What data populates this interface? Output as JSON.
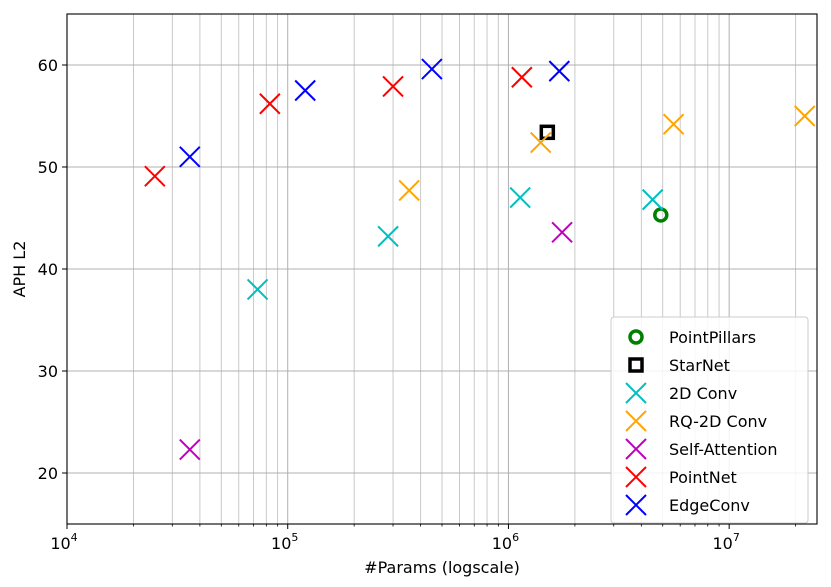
{
  "chart_data": {
    "type": "scatter",
    "xlabel": "#Params (logscale)",
    "ylabel": "APH L2",
    "xscale": "log",
    "xlim": [
      10000,
      25000000
    ],
    "ylim": [
      15,
      65
    ],
    "grid": true,
    "legend_position": "bottom-right",
    "x_ticks": [
      {
        "value": 10000,
        "base": "10",
        "exp": "4"
      },
      {
        "value": 100000,
        "base": "10",
        "exp": "5"
      },
      {
        "value": 1000000,
        "base": "10",
        "exp": "6"
      },
      {
        "value": 10000000,
        "base": "10",
        "exp": "7"
      }
    ],
    "y_ticks": [
      20,
      30,
      40,
      50,
      60
    ],
    "series": [
      {
        "name": "PointPillars",
        "marker": "circle",
        "color": "#008000",
        "points": [
          [
            4900000,
            45.3
          ]
        ]
      },
      {
        "name": "StarNet",
        "marker": "square",
        "color": "#000000",
        "points": [
          [
            1500000,
            53.4
          ]
        ]
      },
      {
        "name": "2D Conv",
        "marker": "x",
        "color": "#00bfbf",
        "points": [
          [
            73000,
            38.0
          ],
          [
            285000,
            43.2
          ],
          [
            1130000,
            47.0
          ],
          [
            4500000,
            46.8
          ]
        ]
      },
      {
        "name": "RQ-2D Conv",
        "marker": "x",
        "color": "#ffa500",
        "points": [
          [
            355000,
            47.7
          ],
          [
            1400000,
            52.4
          ],
          [
            5600000,
            54.2
          ],
          [
            22000000,
            55.0
          ]
        ]
      },
      {
        "name": "Self-Attention",
        "marker": "x",
        "color": "#bf00bf",
        "points": [
          [
            36000,
            22.3
          ],
          [
            1750000,
            43.6
          ]
        ]
      },
      {
        "name": "PointNet",
        "marker": "x",
        "color": "#ff0000",
        "points": [
          [
            25000,
            49.1
          ],
          [
            83000,
            56.2
          ],
          [
            300000,
            57.9
          ],
          [
            1150000,
            58.8
          ]
        ]
      },
      {
        "name": "EdgeConv",
        "marker": "x",
        "color": "#0000ff",
        "points": [
          [
            36000,
            51.0
          ],
          [
            120000,
            57.5
          ],
          [
            450000,
            59.6
          ],
          [
            1700000,
            59.4
          ]
        ]
      }
    ]
  }
}
